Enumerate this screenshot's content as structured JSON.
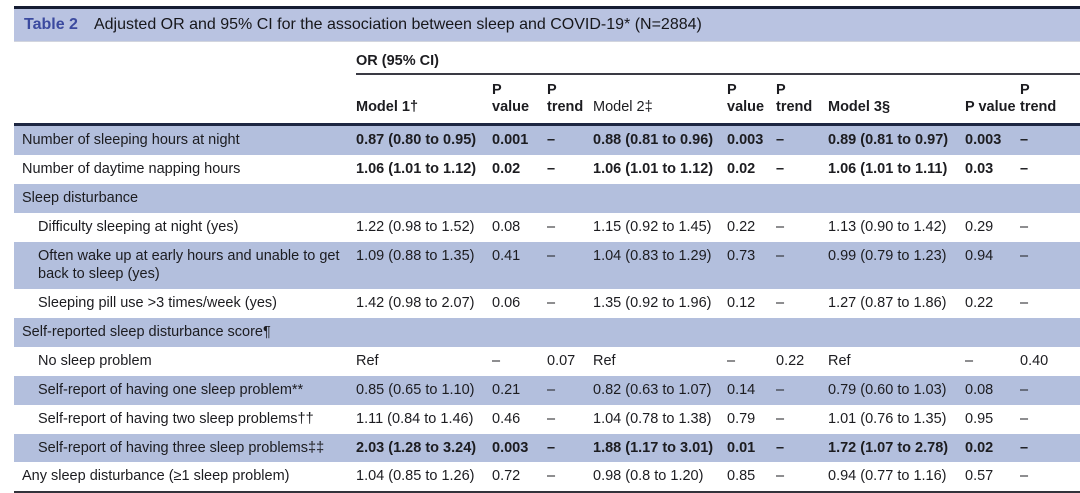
{
  "colors": {
    "title_bar_bg": "#b9c3e1",
    "row_highlight_bg": "#b3bfdd",
    "table_label_accent": "#3b4a9f",
    "dark_rule": "#1e2742"
  },
  "table": {
    "label": "Table 2",
    "title": "Adjusted OR and 95% CI for the association between sleep and COVID-19* (N=2884)",
    "group_header": "OR (95% CI)",
    "columns": [
      {
        "label": "",
        "bold": false
      },
      {
        "label": "Model 1†",
        "bold": true
      },
      {
        "label": "P\nvalue",
        "bold": true
      },
      {
        "label": "P\ntrend",
        "bold": true
      },
      {
        "label": "Model 2‡",
        "bold": false
      },
      {
        "label": "P\nvalue",
        "bold": true
      },
      {
        "label": "P\ntrend",
        "bold": true
      },
      {
        "label": "Model 3§",
        "bold": true
      },
      {
        "label": "P value",
        "bold": true
      },
      {
        "label": "P\ntrend",
        "bold": true
      }
    ],
    "rows": [
      {
        "label": "Number of sleeping hours at night",
        "indent": 0,
        "section": false,
        "bold": true,
        "bg": "blue",
        "cells": [
          "0.87 (0.80 to 0.95)",
          "0.001",
          "–",
          "0.88 (0.81 to 0.96)",
          "0.003",
          "–",
          "0.89 (0.81 to 0.97)",
          "0.003",
          "–"
        ]
      },
      {
        "label": "Number of daytime napping hours",
        "indent": 0,
        "section": false,
        "bold": true,
        "bg": "white",
        "cells": [
          "1.06 (1.01 to 1.12)",
          "0.02",
          "–",
          "1.06 (1.01 to 1.12)",
          "0.02",
          "–",
          "1.06 (1.01 to 1.11)",
          "0.03",
          "–"
        ]
      },
      {
        "label": "Sleep disturbance",
        "indent": 0,
        "section": true,
        "bold": false,
        "bg": "blue",
        "cells": [
          "",
          "",
          "",
          "",
          "",
          "",
          "",
          "",
          ""
        ]
      },
      {
        "label": "Difficulty sleeping at night (yes)",
        "indent": 1,
        "section": false,
        "bold": false,
        "bg": "white",
        "cells": [
          "1.22 (0.98 to 1.52)",
          "0.08",
          "–",
          "1.15 (0.92 to 1.45)",
          "0.22",
          "–",
          "1.13 (0.90 to 1.42)",
          "0.29",
          "–"
        ]
      },
      {
        "label": "Often wake up at early hours and unable to get back to sleep (yes)",
        "indent": 1,
        "section": false,
        "bold": false,
        "bg": "blue",
        "cells": [
          "1.09 (0.88 to 1.35)",
          "0.41",
          "–",
          "1.04 (0.83 to 1.29)",
          "0.73",
          "–",
          "0.99 (0.79 to 1.23)",
          "0.94",
          "–"
        ]
      },
      {
        "label": "Sleeping pill use >3 times/week (yes)",
        "indent": 1,
        "section": false,
        "bold": false,
        "bg": "white",
        "cells": [
          "1.42 (0.98 to 2.07)",
          "0.06",
          "–",
          "1.35 (0.92 to 1.96)",
          "0.12",
          "–",
          "1.27 (0.87 to 1.86)",
          "0.22",
          "–"
        ]
      },
      {
        "label": "Self-reported sleep disturbance score¶",
        "indent": 0,
        "section": true,
        "bold": false,
        "bg": "blue",
        "cells": [
          "",
          "",
          "",
          "",
          "",
          "",
          "",
          "",
          ""
        ]
      },
      {
        "label": "No sleep problem",
        "indent": 1,
        "section": false,
        "bold": false,
        "bg": "white",
        "cells": [
          "Ref",
          "–",
          "0.07",
          "Ref",
          "–",
          "0.22",
          "Ref",
          "–",
          "0.40"
        ]
      },
      {
        "label": "Self-report of having one sleep problem**",
        "indent": 1,
        "section": false,
        "bold": false,
        "bg": "blue",
        "cells": [
          "0.85 (0.65 to 1.10)",
          "0.21",
          "–",
          "0.82 (0.63 to 1.07)",
          "0.14",
          "–",
          "0.79 (0.60 to 1.03)",
          "0.08",
          "–"
        ]
      },
      {
        "label": "Self-report of having two sleep problems††",
        "indent": 1,
        "section": false,
        "bold": false,
        "bg": "white",
        "cells": [
          "1.11 (0.84 to 1.46)",
          "0.46",
          "–",
          "1.04 (0.78 to 1.38)",
          "0.79",
          "–",
          "1.01 (0.76 to 1.35)",
          "0.95",
          "–"
        ]
      },
      {
        "label": "Self-report of having three sleep problems‡‡",
        "indent": 1,
        "section": false,
        "bold": true,
        "bg": "blue",
        "cells": [
          "2.03 (1.28 to 3.24)",
          "0.003",
          "–",
          "1.88 (1.17 to 3.01)",
          "0.01",
          "–",
          "1.72 (1.07 to 2.78)",
          "0.02",
          "–"
        ]
      },
      {
        "label": "Any sleep disturbance (≥1 sleep problem)",
        "indent": 0,
        "section": false,
        "bold": false,
        "bg": "white",
        "cells": [
          "1.04 (0.85 to 1.26)",
          "0.72",
          "–",
          "0.98 (0.8 to 1.20)",
          "0.85",
          "–",
          "0.94 (0.77 to 1.16)",
          "0.57",
          "–"
        ]
      }
    ]
  }
}
